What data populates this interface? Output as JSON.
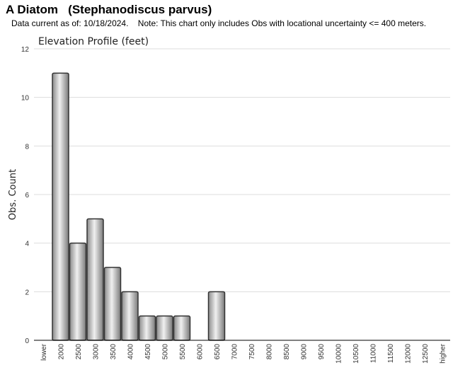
{
  "header": {
    "title": "A Diatom   (Stephanodiscus parvus)",
    "note": "Data current as of: 10/18/2024.    Note: This chart only includes Obs with locational uncertainty <= 400 meters."
  },
  "colors": {
    "bar_fill_dark": "#8a8a8a",
    "bar_fill_light": "#eeeeee",
    "bar_stroke": "#333333",
    "grid": "#dddddd",
    "axis": "#000000"
  },
  "chart_data": {
    "type": "bar",
    "title": "Elevation Profile (feet)",
    "ylabel": "Obs. Count",
    "xlabel": "",
    "categories": [
      "lower",
      "2000",
      "2500",
      "3000",
      "3500",
      "4000",
      "4500",
      "5000",
      "5500",
      "6000",
      "6500",
      "7000",
      "7500",
      "8000",
      "8500",
      "9000",
      "9500",
      "10000",
      "10500",
      "11000",
      "11500",
      "12000",
      "12500",
      "higher"
    ],
    "values": [
      0,
      11,
      4,
      5,
      3,
      2,
      1,
      1,
      1,
      0,
      2,
      0,
      0,
      0,
      0,
      0,
      0,
      0,
      0,
      0,
      0,
      0,
      0,
      0
    ],
    "ylim": [
      0,
      12
    ],
    "yticks": [
      0,
      2,
      4,
      6,
      8,
      10,
      12
    ],
    "grid": true,
    "legend": "none"
  }
}
